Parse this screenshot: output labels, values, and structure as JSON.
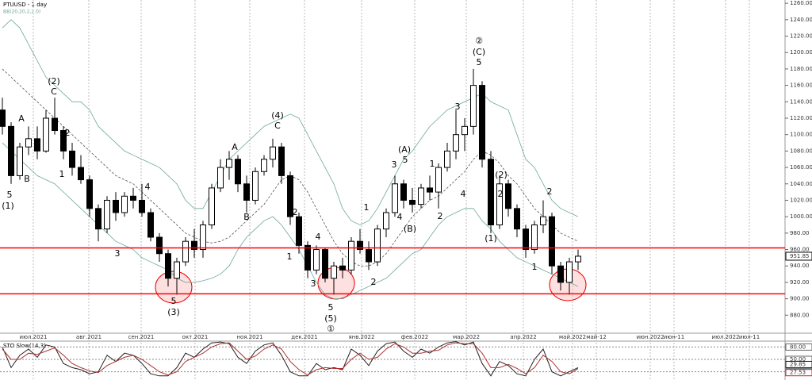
{
  "chart_data": [
    {
      "type": "candlestick",
      "title": "PTUUSD - 1 day",
      "subtitle": "BB(20,20,2,2.0)",
      "x_labels": [
        "июл.2021",
        "авг.2021",
        "сен.2021",
        "окт.2021",
        "ноя.2021",
        "дек.2021",
        "янв.2022",
        "фев.2022",
        "мар.2022",
        "апр.2022",
        "май.2022",
        "май-12",
        "июн.2022",
        "июн-11",
        "июл.2022",
        "июл-11"
      ],
      "ylim": [
        860,
        1264
      ],
      "yticks": [
        {
          "value": 880,
          "label": "880.00"
        },
        {
          "value": 900,
          "label": "900.00"
        },
        {
          "value": 920,
          "label": "920.00"
        },
        {
          "value": 940,
          "label": "940.00"
        },
        {
          "value": 960,
          "label": "960.00"
        },
        {
          "value": 980,
          "label": "980.00"
        },
        {
          "value": 1000,
          "label": "1000.00"
        },
        {
          "value": 1020,
          "label": "1020.00"
        },
        {
          "value": 1040,
          "label": "1040.00"
        },
        {
          "value": 1060,
          "label": "1060.00"
        },
        {
          "value": 1080,
          "label": "1080.00"
        },
        {
          "value": 1100,
          "label": "1100.00"
        },
        {
          "value": 1120,
          "label": "1120.00"
        },
        {
          "value": 1140,
          "label": "1140.00"
        },
        {
          "value": 1160,
          "label": "1160.00"
        },
        {
          "value": 1180,
          "label": "1180.00"
        },
        {
          "value": 1200,
          "label": "1200.00"
        },
        {
          "value": 1220,
          "label": "1220.00"
        },
        {
          "value": 1240,
          "label": "1240.00"
        },
        {
          "value": 1260,
          "label": "1260.00"
        }
      ],
      "last_price": 951.85,
      "levels": [
        962,
        906
      ],
      "level_color": "#ff0000",
      "candles": [
        [
          1130,
          1145,
          1100,
          1110
        ],
        [
          1110,
          1115,
          1040,
          1050
        ],
        [
          1050,
          1090,
          1045,
          1085
        ],
        [
          1085,
          1110,
          1075,
          1095
        ],
        [
          1095,
          1110,
          1070,
          1080
        ],
        [
          1080,
          1130,
          1078,
          1120
        ],
        [
          1120,
          1145,
          1100,
          1105
        ],
        [
          1105,
          1110,
          1070,
          1080
        ],
        [
          1080,
          1090,
          1050,
          1060
        ],
        [
          1060,
          1075,
          1040,
          1045
        ],
        [
          1045,
          1050,
          1000,
          1010
        ],
        [
          1010,
          1015,
          970,
          985
        ],
        [
          985,
          1025,
          980,
          1020
        ],
        [
          1020,
          1030,
          995,
          1005
        ],
        [
          1005,
          1030,
          1000,
          1025
        ],
        [
          1025,
          1035,
          1010,
          1020
        ],
        [
          1020,
          1040,
          1000,
          1005
        ],
        [
          1005,
          1010,
          970,
          975
        ],
        [
          975,
          980,
          945,
          955
        ],
        [
          955,
          960,
          915,
          925
        ],
        [
          925,
          950,
          905,
          945
        ],
        [
          945,
          975,
          940,
          970
        ],
        [
          970,
          985,
          950,
          960
        ],
        [
          960,
          995,
          950,
          990
        ],
        [
          990,
          1040,
          985,
          1035
        ],
        [
          1035,
          1070,
          1030,
          1060
        ],
        [
          1060,
          1080,
          1045,
          1070
        ],
        [
          1070,
          1075,
          1030,
          1040
        ],
        [
          1040,
          1050,
          1005,
          1020
        ],
        [
          1020,
          1060,
          1015,
          1055
        ],
        [
          1055,
          1075,
          1050,
          1070
        ],
        [
          1070,
          1095,
          1060,
          1085
        ],
        [
          1085,
          1090,
          1040,
          1050
        ],
        [
          1050,
          1055,
          990,
          1000
        ],
        [
          1000,
          1005,
          955,
          965
        ],
        [
          965,
          970,
          925,
          935
        ],
        [
          935,
          965,
          930,
          960
        ],
        [
          960,
          962,
          920,
          925
        ],
        [
          925,
          945,
          905,
          940
        ],
        [
          940,
          950,
          925,
          935
        ],
        [
          935,
          975,
          930,
          970
        ],
        [
          970,
          985,
          955,
          960
        ],
        [
          960,
          970,
          935,
          945
        ],
        [
          945,
          990,
          940,
          985
        ],
        [
          985,
          1010,
          975,
          1005
        ],
        [
          1005,
          1050,
          1000,
          1040
        ],
        [
          1040,
          1045,
          1010,
          1020
        ],
        [
          1020,
          1035,
          1005,
          1015
        ],
        [
          1015,
          1040,
          1010,
          1035
        ],
        [
          1035,
          1050,
          1020,
          1030
        ],
        [
          1030,
          1065,
          1010,
          1060
        ],
        [
          1060,
          1090,
          1055,
          1080
        ],
        [
          1080,
          1130,
          1070,
          1100
        ],
        [
          1100,
          1120,
          1080,
          1110
        ],
        [
          1110,
          1180,
          1100,
          1160
        ],
        [
          1160,
          1165,
          1060,
          1070
        ],
        [
          1070,
          1080,
          980,
          990
        ],
        [
          990,
          1050,
          985,
          1040
        ],
        [
          1040,
          1045,
          1000,
          1010
        ],
        [
          1010,
          1015,
          975,
          985
        ],
        [
          985,
          990,
          950,
          960
        ],
        [
          960,
          995,
          955,
          990
        ],
        [
          990,
          1020,
          980,
          1000
        ],
        [
          1000,
          1005,
          930,
          940
        ],
        [
          940,
          945,
          910,
          920
        ],
        [
          920,
          950,
          905,
          945
        ],
        [
          945,
          960,
          935,
          951.85
        ]
      ],
      "bands": [
        {
          "color": "#6fa89c",
          "values": [
            1230,
            1240,
            1230,
            1210,
            1190,
            1170,
            1160,
            1150,
            1140,
            1140,
            1130,
            1110,
            1100,
            1090,
            1080,
            1075,
            1070,
            1065,
            1060,
            1050,
            1040,
            1020,
            1010,
            1010,
            1030,
            1050,
            1070,
            1080,
            1090,
            1100,
            1110,
            1115,
            1120,
            1125,
            1120,
            1100,
            1080,
            1060,
            1040,
            1010,
            995,
            990,
            995,
            1010,
            1030,
            1050,
            1070,
            1080,
            1095,
            1110,
            1120,
            1130,
            1135,
            1140,
            1145,
            1150,
            1140,
            1135,
            1130,
            1100,
            1070,
            1060,
            1040,
            1020,
            1010,
            1005,
            1000
          ]
        },
        {
          "color": "#555555",
          "dashed": true,
          "values": [
            1180,
            1170,
            1160,
            1150,
            1140,
            1130,
            1120,
            1110,
            1100,
            1090,
            1080,
            1070,
            1060,
            1050,
            1045,
            1040,
            1030,
            1020,
            1010,
            1000,
            990,
            980,
            975,
            970,
            968,
            970,
            975,
            985,
            995,
            1005,
            1015,
            1030,
            1045,
            1050,
            1045,
            1030,
            1010,
            990,
            970,
            955,
            945,
            940,
            940,
            945,
            955,
            970,
            985,
            1000,
            1010,
            1020,
            1025,
            1035,
            1045,
            1055,
            1070,
            1080,
            1075,
            1065,
            1050,
            1040,
            1025,
            1010,
            1000,
            990,
            980,
            975,
            970
          ]
        },
        {
          "color": "#6fa89c",
          "values": [
            1090,
            1080,
            1070,
            1060,
            1050,
            1045,
            1040,
            1030,
            1020,
            1010,
            1000,
            990,
            980,
            970,
            965,
            960,
            950,
            945,
            940,
            935,
            925,
            920,
            920,
            922,
            925,
            930,
            940,
            960,
            975,
            985,
            995,
            1000,
            990,
            975,
            960,
            940,
            920,
            905,
            900,
            900,
            905,
            910,
            915,
            920,
            925,
            935,
            945,
            955,
            960,
            975,
            990,
            1000,
            1005,
            1010,
            1010,
            995,
            985,
            970,
            960,
            950,
            945,
            940,
            935,
            930,
            925,
            920,
            915
          ]
        }
      ],
      "annotations": [
        "5",
        "(1)",
        "A",
        "B",
        "(2)",
        "C",
        "2",
        "1",
        "3",
        "4",
        "5",
        "(3)",
        "A",
        "B",
        "(4)",
        "C",
        "2",
        "1",
        "4",
        "3",
        "5",
        "(5)",
        "①",
        "1",
        "2",
        "4",
        "(B)",
        "3",
        "(A)",
        "5",
        "1",
        "2",
        "4",
        "3",
        "②",
        "(C)",
        "5",
        "(2)",
        "2",
        "(1)",
        "1",
        "2"
      ]
    },
    {
      "type": "line",
      "title": "STO Slow(14,3)",
      "ylim": [
        0,
        100
      ],
      "yticks": [
        {
          "value": 80,
          "label": "80.00"
        },
        {
          "value": 50,
          "label": "50.00"
        },
        {
          "value": 20,
          "label": "20.00"
        }
      ],
      "series": [
        {
          "color": "#222222",
          "values": [
            80,
            30,
            60,
            75,
            55,
            85,
            80,
            40,
            30,
            25,
            15,
            20,
            60,
            45,
            65,
            60,
            40,
            15,
            10,
            10,
            30,
            65,
            55,
            75,
            90,
            92,
            88,
            55,
            40,
            70,
            85,
            90,
            60,
            20,
            10,
            10,
            40,
            25,
            30,
            25,
            75,
            60,
            35,
            70,
            88,
            92,
            70,
            55,
            75,
            65,
            80,
            90,
            93,
            85,
            92,
            40,
            10,
            45,
            35,
            15,
            10,
            50,
            75,
            20,
            10,
            20,
            29.85
          ]
        },
        {
          "color": "#b03030",
          "values": [
            75,
            50,
            50,
            65,
            62,
            70,
            78,
            60,
            40,
            30,
            22,
            18,
            35,
            45,
            55,
            60,
            50,
            35,
            20,
            12,
            20,
            45,
            55,
            65,
            80,
            88,
            90,
            70,
            50,
            58,
            75,
            85,
            75,
            45,
            25,
            12,
            25,
            30,
            28,
            28,
            50,
            65,
            50,
            55,
            75,
            88,
            80,
            65,
            65,
            70,
            72,
            85,
            90,
            88,
            88,
            65,
            30,
            30,
            38,
            28,
            15,
            30,
            60,
            45,
            20,
            15,
            27.53
          ]
        }
      ]
    }
  ]
}
